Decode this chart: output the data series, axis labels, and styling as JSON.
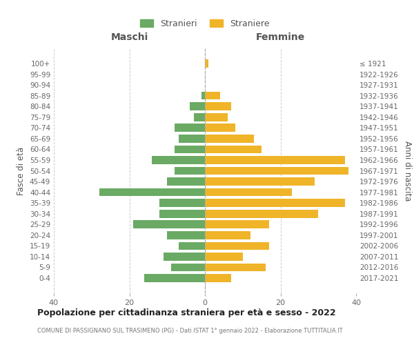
{
  "age_groups": [
    "0-4",
    "5-9",
    "10-14",
    "15-19",
    "20-24",
    "25-29",
    "30-34",
    "35-39",
    "40-44",
    "45-49",
    "50-54",
    "55-59",
    "60-64",
    "65-69",
    "70-74",
    "75-79",
    "80-84",
    "85-89",
    "90-94",
    "95-99",
    "100+"
  ],
  "birth_years": [
    "2017-2021",
    "2012-2016",
    "2007-2011",
    "2002-2006",
    "1997-2001",
    "1992-1996",
    "1987-1991",
    "1982-1986",
    "1977-1981",
    "1972-1976",
    "1967-1971",
    "1962-1966",
    "1957-1961",
    "1952-1956",
    "1947-1951",
    "1942-1946",
    "1937-1941",
    "1932-1936",
    "1927-1931",
    "1922-1926",
    "≤ 1921"
  ],
  "maschi": [
    16,
    9,
    11,
    7,
    10,
    19,
    12,
    12,
    28,
    10,
    8,
    14,
    8,
    7,
    8,
    3,
    4,
    1,
    0,
    0,
    0
  ],
  "femmine": [
    7,
    16,
    10,
    17,
    12,
    17,
    30,
    37,
    23,
    29,
    38,
    37,
    15,
    13,
    8,
    6,
    7,
    4,
    0,
    0,
    1
  ],
  "maschi_color": "#6aaa64",
  "femmine_color": "#f0b429",
  "title": "Popolazione per cittadinanza straniera per età e sesso - 2022",
  "subtitle": "COMUNE DI PASSIGNANO SUL TRASIMENO (PG) - Dati ISTAT 1° gennaio 2022 - Elaborazione TUTTITALIA.IT",
  "legend_maschi": "Stranieri",
  "legend_femmine": "Straniere",
  "xlabel_left": "Maschi",
  "xlabel_right": "Femmine",
  "ylabel_left": "Fasce di età",
  "ylabel_right": "Anni di nascita",
  "xlim": 40,
  "background_color": "#ffffff",
  "grid_color": "#cccccc"
}
